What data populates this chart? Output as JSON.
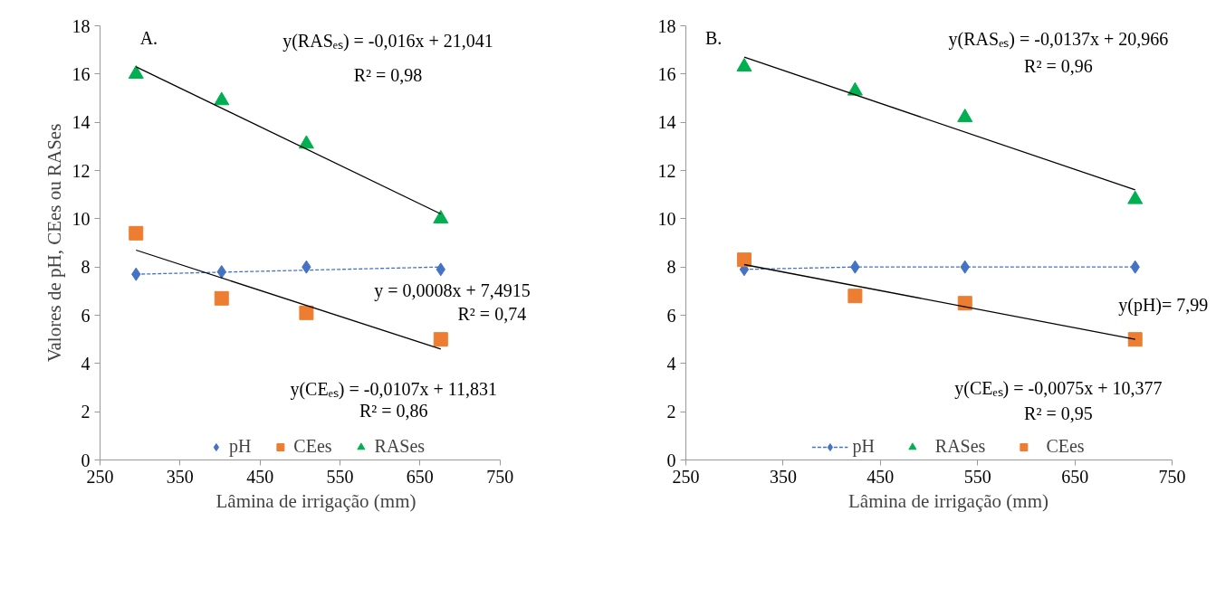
{
  "chart_data": [
    {
      "type": "scatter",
      "ylabel": "Valores de pH, CEes ou RASes",
      "xlabel": "Lâmina de irrigação (mm)",
      "xlim": [
        250,
        750
      ],
      "xticks": [
        250,
        350,
        450,
        550,
        650,
        750
      ],
      "ylim": [
        0,
        18
      ],
      "yticks": [
        0,
        2,
        4,
        6,
        8,
        10,
        12,
        14,
        16,
        18
      ],
      "grid": false,
      "legend": "bottom",
      "annotations": [
        "A.",
        "y(RASₑₛ) = -0,016x + 21,041",
        "R² = 0,98",
        "y = 0,0008x + 7,4915",
        "R² = 0,74",
        "y(CEₑₛ) = -0,0107x + 11,831",
        "R² = 0,86"
      ],
      "series": [
        {
          "name": "pH",
          "marker": "diamond",
          "color": "#4472c4",
          "x": [
            295,
            402,
            508,
            676
          ],
          "values": [
            7.7,
            7.8,
            8.0,
            7.9
          ]
        },
        {
          "name": "CEes",
          "marker": "square",
          "color": "#ed7d31",
          "x": [
            295,
            402,
            508,
            676
          ],
          "values": [
            9.4,
            6.7,
            6.1,
            5.0
          ]
        },
        {
          "name": "RASes",
          "marker": "triangle",
          "color": "#00b050",
          "x": [
            295,
            402,
            508,
            676
          ],
          "values": [
            16.0,
            14.9,
            13.1,
            10.0
          ]
        },
        {
          "type": "line",
          "marker": "none",
          "line_style": "dashed",
          "color": "#4472c4",
          "x": [
            295,
            676
          ],
          "values": [
            7.7,
            8.0
          ]
        },
        {
          "type": "line",
          "marker": "none",
          "line_style": "solid",
          "color": "#000000",
          "x": [
            295,
            676
          ],
          "values": [
            8.7,
            4.6
          ]
        },
        {
          "type": "line",
          "marker": "none",
          "line_style": "solid",
          "color": "#000000",
          "x": [
            295,
            676
          ],
          "values": [
            16.3,
            10.2
          ]
        }
      ]
    },
    {
      "type": "scatter",
      "xlabel": "Lâmina de irrigação (mm)",
      "xlim": [
        250,
        750
      ],
      "xticks": [
        250,
        350,
        450,
        550,
        650,
        750
      ],
      "ylim": [
        0,
        18
      ],
      "yticks": [
        0,
        2,
        4,
        6,
        8,
        10,
        12,
        14,
        16,
        18
      ],
      "grid": false,
      "legend": "bottom",
      "annotations": [
        "B.",
        "y(RASₑₛ) = -0,0137x + 20,966",
        "R² = 0,96",
        "y(pH)= 7,99",
        "y(CEₑₛ) = -0,0075x + 10,377",
        "R² = 0,95"
      ],
      "series": [
        {
          "name": "pH",
          "type": "line",
          "marker": "diamond",
          "line_style": "dashed",
          "color": "#4472c4",
          "x": [
            310,
            424,
            537,
            712
          ],
          "values": [
            7.9,
            8.0,
            8.0,
            8.0
          ]
        },
        {
          "name": "RASes",
          "marker": "triangle",
          "color": "#00b050",
          "x": [
            310,
            424,
            537,
            712
          ],
          "values": [
            16.3,
            15.3,
            14.2,
            10.8
          ]
        },
        {
          "name": "CEes",
          "marker": "square",
          "color": "#ed7d31",
          "x": [
            310,
            424,
            537,
            712
          ],
          "values": [
            8.3,
            6.8,
            6.5,
            5.0
          ]
        },
        {
          "type": "line",
          "marker": "none",
          "line_style": "solid",
          "color": "#000000",
          "x": [
            310,
            712
          ],
          "values": [
            8.1,
            5.0
          ]
        },
        {
          "type": "line",
          "marker": "none",
          "line_style": "solid",
          "color": "#000000",
          "x": [
            310,
            712
          ],
          "values": [
            16.7,
            11.2
          ]
        }
      ]
    }
  ]
}
